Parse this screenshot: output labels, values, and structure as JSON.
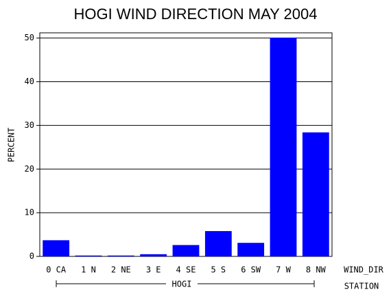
{
  "chart_data": {
    "type": "bar",
    "title": "HOGI WIND DIRECTION MAY 2004",
    "ylabel": "PERCENT",
    "xlabel": "WIND_DIR",
    "group": {
      "axis_label": "STATION",
      "name": "HOGI"
    },
    "categories": [
      "0 CA",
      "1 N",
      "2 NE",
      "3 E",
      "4 SE",
      "5 S",
      "6 SW",
      "7 W",
      "8 NW"
    ],
    "values": [
      3.7,
      0.2,
      0.2,
      0.5,
      2.6,
      5.8,
      3.1,
      50.1,
      28.4
    ],
    "color": "#0000ff",
    "ylim": [
      0,
      51.2
    ],
    "yticks": [
      0,
      10,
      20,
      30,
      40,
      50
    ],
    "grid": true
  }
}
